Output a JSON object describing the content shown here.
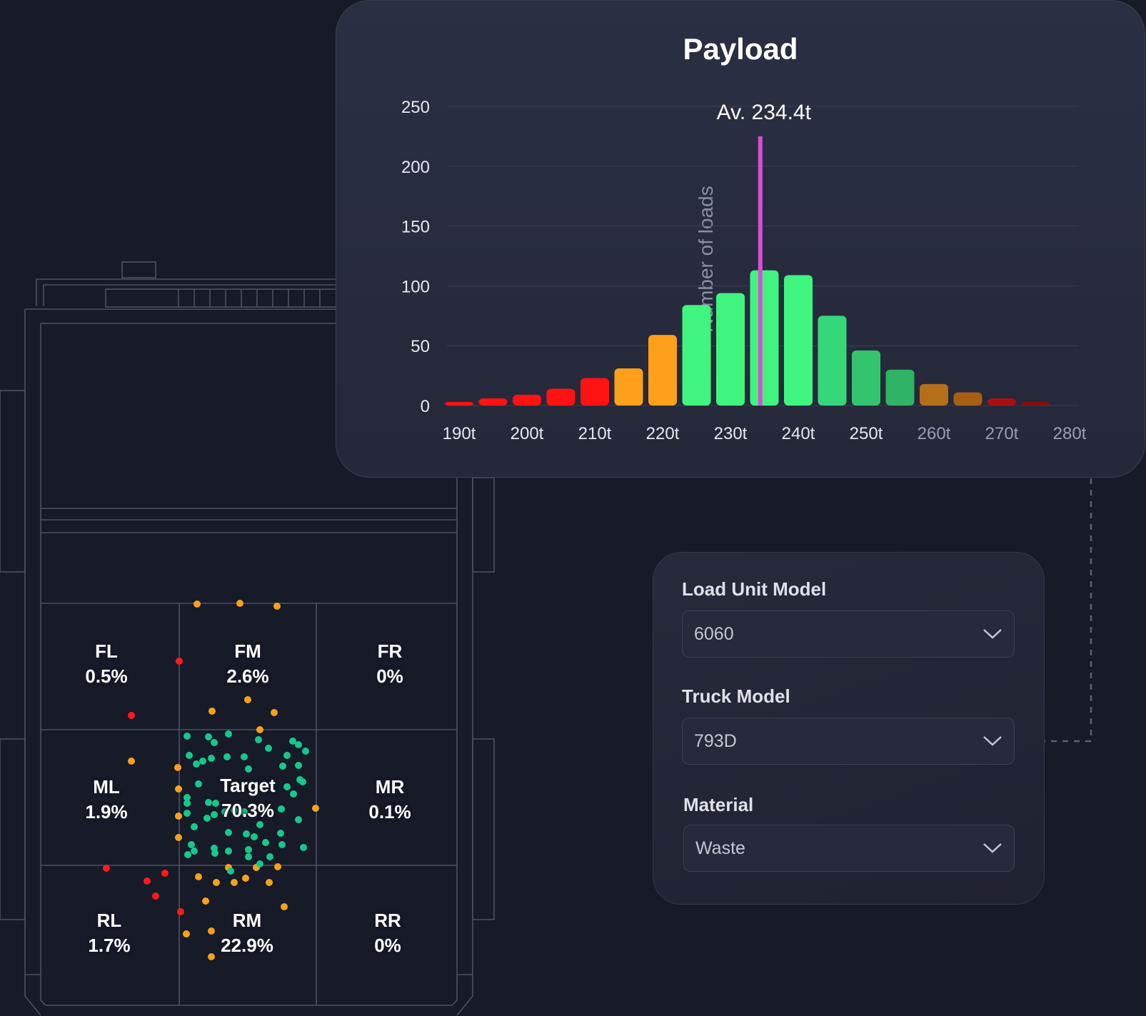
{
  "truck_diagram": {
    "zones": [
      {
        "id": "fl",
        "code": "FL",
        "pct": "0.5%"
      },
      {
        "id": "fm",
        "code": "FM",
        "pct": "2.6%"
      },
      {
        "id": "fr",
        "code": "FR",
        "pct": "0%"
      },
      {
        "id": "ml",
        "code": "ML",
        "pct": "1.9%"
      },
      {
        "id": "target",
        "code": "Target",
        "pct": "70.3%"
      },
      {
        "id": "mr",
        "code": "MR",
        "pct": "0.1%"
      },
      {
        "id": "rl",
        "code": "RL",
        "pct": "1.7%"
      },
      {
        "id": "rm",
        "code": "RM",
        "pct": "22.9%"
      },
      {
        "id": "rr",
        "code": "RR",
        "pct": "0%"
      }
    ],
    "colors": {
      "target": "#14c98a",
      "warning": "#f7a01b",
      "error": "#ff1a1a",
      "outline": "#4c5064"
    }
  },
  "payload": {
    "title": "Payload",
    "average_label": "Av. 234.4t",
    "chart_data": {
      "type": "bar",
      "title": "Payload",
      "ylabel": "Number of loads",
      "xlabel": "",
      "ylim": [
        0,
        250
      ],
      "yticks": [
        "0",
        "50",
        "100",
        "150",
        "200",
        "250"
      ],
      "xtick_labels": [
        "190t",
        "200t",
        "210t",
        "220t",
        "230t",
        "240t",
        "250t",
        "260t",
        "270t",
        "280t"
      ],
      "xtick_values": [
        190,
        200,
        210,
        220,
        230,
        240,
        250,
        260,
        270,
        280
      ],
      "bins": [
        190,
        195,
        200,
        205,
        210,
        215,
        220,
        225,
        230,
        235,
        240,
        245,
        250,
        255,
        260,
        265,
        270,
        275
      ],
      "values": [
        3,
        6,
        9,
        14,
        23,
        31,
        59,
        84,
        94,
        113,
        109,
        75,
        46,
        30,
        18,
        11,
        6,
        3
      ],
      "average": 234.4,
      "average_color": "#d94fd6",
      "colors": [
        "#ff1212",
        "#ff1212",
        "#ff1212",
        "#ff1212",
        "#ff1212",
        "#ffa01a",
        "#ffa01a",
        "#3ff57f",
        "#3ff57f",
        "#3ff57f",
        "#3ff57f",
        "#35d778",
        "#35c46e",
        "#2fb364",
        "#b56f1b",
        "#a85f13",
        "#a81010",
        "#8a0d0d"
      ],
      "grid": true
    }
  },
  "settings": {
    "load_unit_model": {
      "label": "Load Unit Model",
      "value": "6060"
    },
    "truck_model": {
      "label": "Truck Model",
      "value": "793D"
    },
    "material": {
      "label": "Material",
      "value": "Waste"
    }
  }
}
